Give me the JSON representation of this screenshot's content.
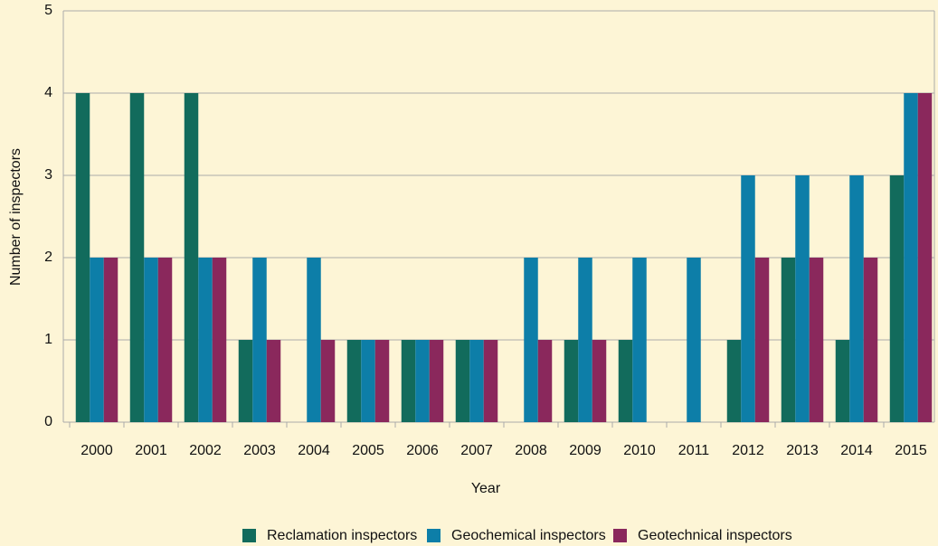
{
  "chart_data": {
    "type": "bar",
    "x_label": "Year",
    "y_label": "Number of inspectors",
    "categories": [
      "2000",
      "2001",
      "2002",
      "2003",
      "2004",
      "2005",
      "2006",
      "2007",
      "2008",
      "2009",
      "2010",
      "2011",
      "2012",
      "2013",
      "2014",
      "2015"
    ],
    "series": [
      {
        "name": "Reclamation inspectors",
        "color": "#126b5c",
        "values": [
          4,
          4,
          4,
          1,
          0,
          1,
          1,
          1,
          0,
          1,
          1,
          0,
          1,
          2,
          1,
          3
        ]
      },
      {
        "name": "Geochemical inspectors",
        "color": "#0d7ea8",
        "values": [
          2,
          2,
          2,
          2,
          2,
          1,
          1,
          1,
          2,
          2,
          2,
          2,
          3,
          3,
          3,
          4
        ]
      },
      {
        "name": "Geotechnical inspectors",
        "color": "#8a285c",
        "values": [
          2,
          2,
          2,
          1,
          1,
          1,
          1,
          1,
          1,
          1,
          0,
          0,
          2,
          2,
          2,
          4
        ]
      }
    ],
    "ylim": [
      0,
      5
    ],
    "yticks": [
      0,
      1,
      2,
      3,
      4,
      5
    ],
    "grid": true,
    "legend": "bottom"
  }
}
